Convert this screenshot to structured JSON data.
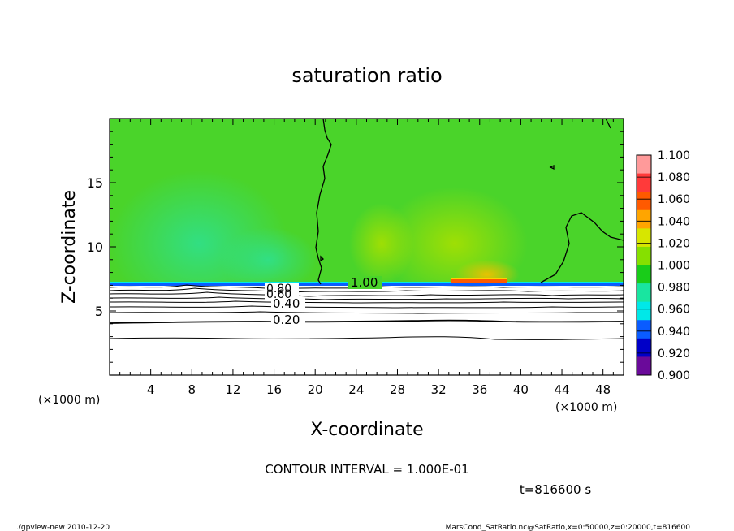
{
  "chart_data": {
    "type": "heatmap",
    "title": "saturation ratio",
    "xlabel": "X-coordinate",
    "ylabel": "Z-coordinate",
    "x_unit_left": "(×1000 m)",
    "x_unit_right": "(×1000 m)",
    "xlim": [
      0,
      50
    ],
    "ylim": [
      0,
      20
    ],
    "xticks": [
      4,
      8,
      12,
      16,
      20,
      24,
      28,
      32,
      36,
      40,
      44,
      48
    ],
    "yticks": [
      5,
      10,
      15
    ],
    "colorbar": {
      "labels": [
        "1.100",
        "1.080",
        "1.060",
        "1.040",
        "1.020",
        "1.000",
        "0.980",
        "0.960",
        "0.940",
        "0.920",
        "0.900"
      ],
      "colors": [
        "#ff9a9a",
        "#ff3a3a",
        "#ff5a00",
        "#ffa500",
        "#d7e600",
        "#86e000",
        "#19cc19",
        "#19e5a0",
        "#00e8e8",
        "#0a5cff",
        "#0000c8",
        "#6a0a9a"
      ]
    },
    "contour_labels": [
      "1.00",
      "0.80",
      "0.60",
      "0.40",
      "0.20"
    ],
    "contour_interval": "CONTOUR INTERVAL = 1.000E-01",
    "time": "t=816600 s",
    "footer_left": "./gpview-new   2010-12-20",
    "footer_right": "MarsCond_SatRatio.nc@SatRatio,x=0:50000,z=0:20000,t=816600"
  }
}
